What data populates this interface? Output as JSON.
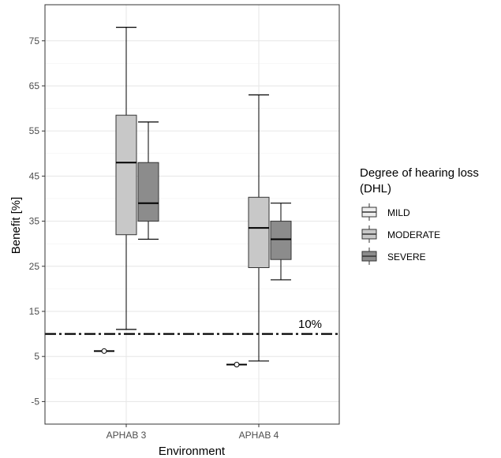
{
  "chart_data": {
    "type": "boxplot",
    "xlabel": "Environment",
    "ylabel": "Benefit [%]",
    "ylim": [
      -10,
      83
    ],
    "yticks": [
      -5,
      5,
      15,
      25,
      35,
      45,
      55,
      65,
      75
    ],
    "categories": [
      "APHAB 3",
      "APHAB 4"
    ],
    "grid": true,
    "legend": {
      "title_line1": "Degree of hearing loss",
      "title_line2": "(DHL)",
      "placement": "right"
    },
    "series": [
      {
        "name": "MILD",
        "color": "#eeeeee",
        "boxes": [
          {
            "category": "APHAB 3",
            "min": 6.2,
            "q1": 6.2,
            "median": 6.2,
            "q3": 6.2,
            "max": 6.2,
            "outliers": [
              6.2
            ]
          },
          {
            "category": "APHAB 4",
            "min": 3.2,
            "q1": 3.2,
            "median": 3.2,
            "q3": 3.2,
            "max": 3.2,
            "outliers": [
              3.2
            ]
          }
        ]
      },
      {
        "name": "MODERATE",
        "color": "#c8c8c8",
        "boxes": [
          {
            "category": "APHAB 3",
            "min": 11,
            "q1": 32,
            "median": 48,
            "q3": 58.5,
            "max": 78
          },
          {
            "category": "APHAB 4",
            "min": 4,
            "q1": 24.7,
            "median": 33.5,
            "q3": 40.3,
            "max": 63
          }
        ]
      },
      {
        "name": "SEVERE",
        "color": "#8c8c8c",
        "boxes": [
          {
            "category": "APHAB 3",
            "min": 31,
            "q1": 35,
            "median": 39,
            "q3": 48,
            "max": 57
          },
          {
            "category": "APHAB 4",
            "min": 22,
            "q1": 26.5,
            "median": 31,
            "q3": 35,
            "max": 39
          }
        ]
      }
    ],
    "reference_line": {
      "y": 10,
      "style": "dash-dot",
      "label": "10%"
    }
  }
}
